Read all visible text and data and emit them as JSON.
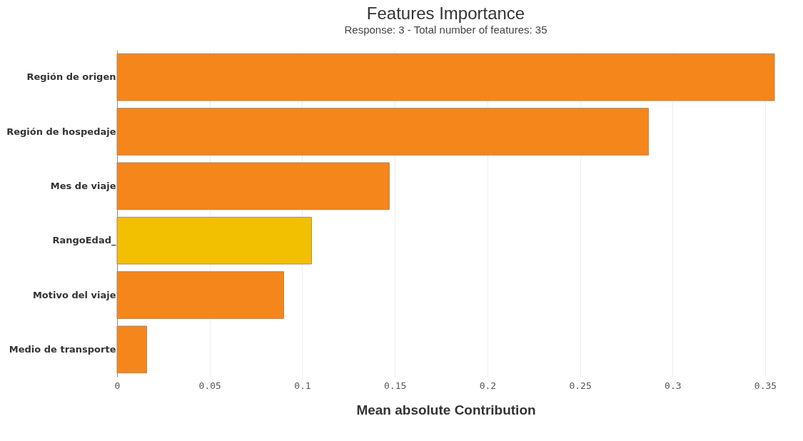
{
  "chart_data": {
    "type": "bar",
    "orientation": "horizontal",
    "title": "Features Importance",
    "subtitle": "Response: 3 - Total number of features: 35",
    "xlabel": "Mean absolute Contribution",
    "categories": [
      "Región de origen",
      "Región de hospedaje",
      "Mes de viaje",
      "RangoEdad_",
      "Motivo del viaje",
      "Medio de transporte"
    ],
    "values": [
      0.355,
      0.287,
      0.147,
      0.105,
      0.09,
      0.016
    ],
    "colors": [
      "#f4861c",
      "#f4861c",
      "#f4861c",
      "#f2c000",
      "#f4861c",
      "#f4861c"
    ],
    "xlim": [
      0,
      0.355
    ],
    "xticks": [
      0,
      0.05,
      0.1,
      0.15,
      0.2,
      0.25,
      0.3,
      0.35
    ],
    "grid": "x",
    "legend": false
  }
}
